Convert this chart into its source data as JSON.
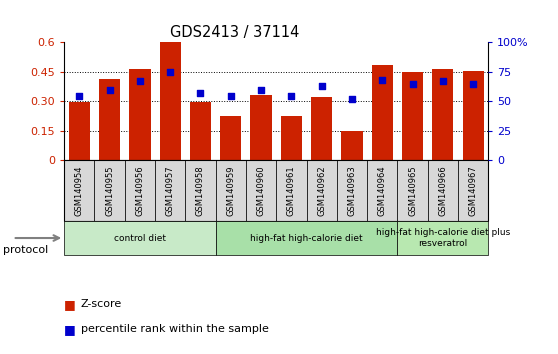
{
  "title": "GDS2413 / 37114",
  "samples": [
    "GSM140954",
    "GSM140955",
    "GSM140956",
    "GSM140957",
    "GSM140958",
    "GSM140959",
    "GSM140960",
    "GSM140961",
    "GSM140962",
    "GSM140963",
    "GSM140964",
    "GSM140965",
    "GSM140966",
    "GSM140967"
  ],
  "z_scores": [
    0.295,
    0.415,
    0.465,
    0.6,
    0.295,
    0.225,
    0.335,
    0.225,
    0.325,
    0.15,
    0.485,
    0.45,
    0.465,
    0.455
  ],
  "percentile_ranks": [
    55,
    60,
    67,
    75,
    57,
    55,
    60,
    55,
    63,
    52,
    68,
    65,
    67,
    65
  ],
  "bar_color": "#cc2200",
  "dot_color": "#0000cc",
  "ylim_left": [
    0,
    0.6
  ],
  "ylim_right": [
    0,
    100
  ],
  "yticks_left": [
    0,
    0.15,
    0.3,
    0.45,
    0.6
  ],
  "ytick_labels_left": [
    "0",
    "0.15",
    "0.30",
    "0.45",
    "0.6"
  ],
  "yticks_right": [
    0,
    25,
    50,
    75,
    100
  ],
  "ytick_labels_right": [
    "0",
    "25",
    "50",
    "75",
    "100%"
  ],
  "groups": [
    {
      "label": "control diet",
      "start": 0,
      "end": 5,
      "color": "#c8eac8"
    },
    {
      "label": "high-fat high-calorie diet",
      "start": 5,
      "end": 11,
      "color": "#a8e0a8"
    },
    {
      "label": "high-fat high-calorie diet plus\nresveratrol",
      "start": 11,
      "end": 14,
      "color": "#b8e8b0"
    }
  ],
  "protocol_label": "protocol",
  "legend_zscore": "Z-score",
  "legend_pct": "percentile rank within the sample",
  "background_color": "#ffffff",
  "tick_bg_color": "#d8d8d8",
  "gridline_ticks": [
    0.15,
    0.3,
    0.45
  ]
}
